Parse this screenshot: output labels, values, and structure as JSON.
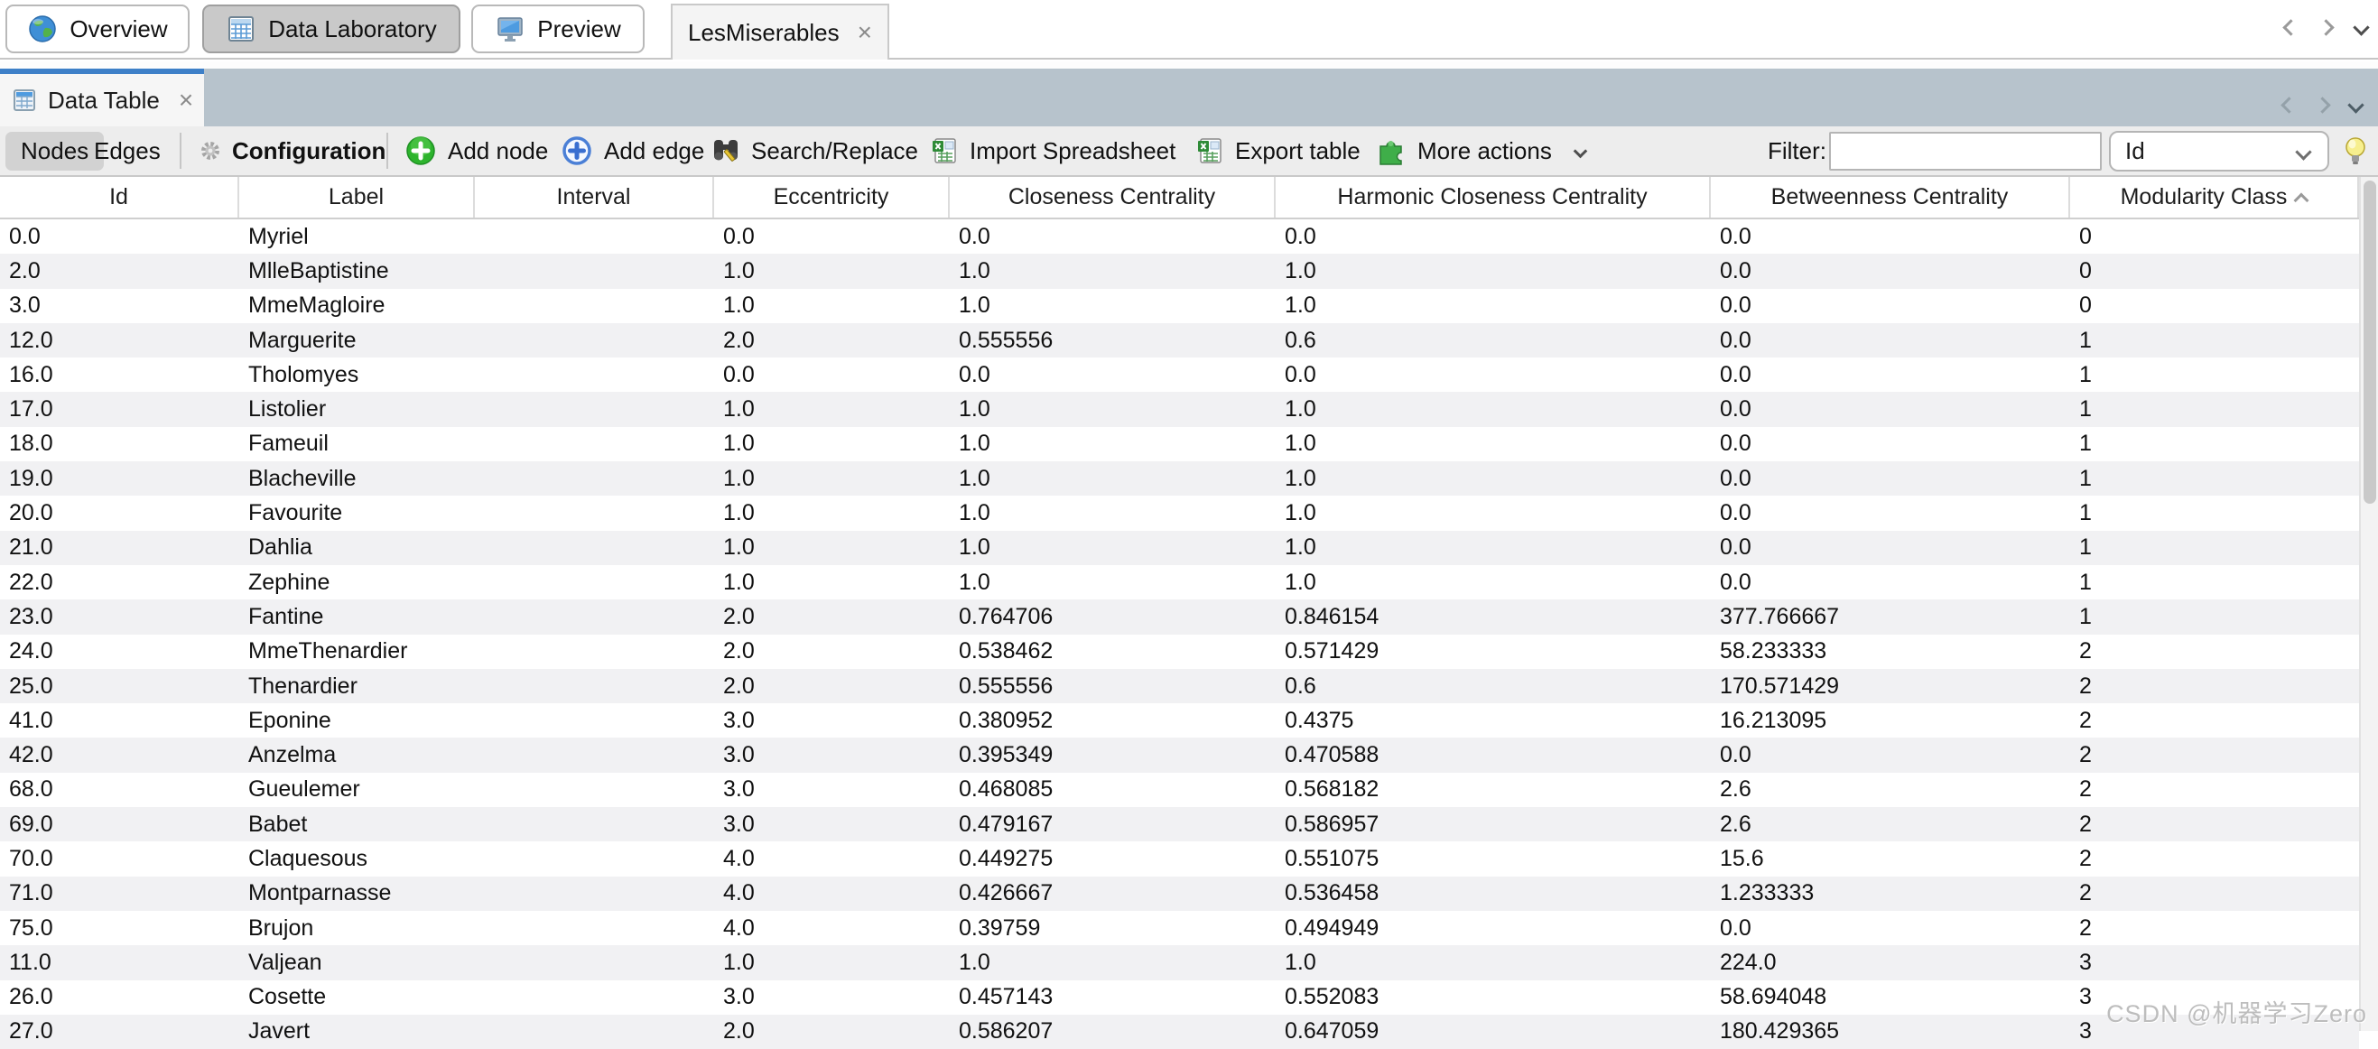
{
  "workspace_tabs": {
    "overview": "Overview",
    "data_laboratory": "Data Laboratory",
    "preview": "Preview"
  },
  "document_tab": {
    "label": "LesMiserables",
    "close": "×"
  },
  "panel_tab": {
    "label": "Data Table",
    "close": "×"
  },
  "toolbar": {
    "nodes": "Nodes",
    "edges": "Edges",
    "configuration": "Configuration",
    "add_node": "Add node",
    "add_edge": "Add edge",
    "search_replace": "Search/Replace",
    "import_spreadsheet": "Import Spreadsheet",
    "export_table": "Export table",
    "more_actions": "More actions",
    "filter_label": "Filter:",
    "filter_value": "",
    "filter_placeholder": "",
    "filter_column": "Id"
  },
  "table": {
    "columns": [
      "Id",
      "Label",
      "Interval",
      "Eccentricity",
      "Closeness Centrality",
      "Harmonic Closeness Centrality",
      "Betweenness Centrality",
      "Modularity Class"
    ],
    "sorted_column": "Modularity Class",
    "sort_direction": "ascending",
    "rows": [
      [
        "0.0",
        "Myriel",
        "",
        "0.0",
        "0.0",
        "0.0",
        "0.0",
        "0"
      ],
      [
        "2.0",
        "MlleBaptistine",
        "",
        "1.0",
        "1.0",
        "1.0",
        "0.0",
        "0"
      ],
      [
        "3.0",
        "MmeMagloire",
        "",
        "1.0",
        "1.0",
        "1.0",
        "0.0",
        "0"
      ],
      [
        "12.0",
        "Marguerite",
        "",
        "2.0",
        "0.555556",
        "0.6",
        "0.0",
        "1"
      ],
      [
        "16.0",
        "Tholomyes",
        "",
        "0.0",
        "0.0",
        "0.0",
        "0.0",
        "1"
      ],
      [
        "17.0",
        "Listolier",
        "",
        "1.0",
        "1.0",
        "1.0",
        "0.0",
        "1"
      ],
      [
        "18.0",
        "Fameuil",
        "",
        "1.0",
        "1.0",
        "1.0",
        "0.0",
        "1"
      ],
      [
        "19.0",
        "Blacheville",
        "",
        "1.0",
        "1.0",
        "1.0",
        "0.0",
        "1"
      ],
      [
        "20.0",
        "Favourite",
        "",
        "1.0",
        "1.0",
        "1.0",
        "0.0",
        "1"
      ],
      [
        "21.0",
        "Dahlia",
        "",
        "1.0",
        "1.0",
        "1.0",
        "0.0",
        "1"
      ],
      [
        "22.0",
        "Zephine",
        "",
        "1.0",
        "1.0",
        "1.0",
        "0.0",
        "1"
      ],
      [
        "23.0",
        "Fantine",
        "",
        "2.0",
        "0.764706",
        "0.846154",
        "377.766667",
        "1"
      ],
      [
        "24.0",
        "MmeThenardier",
        "",
        "2.0",
        "0.538462",
        "0.571429",
        "58.233333",
        "2"
      ],
      [
        "25.0",
        "Thenardier",
        "",
        "2.0",
        "0.555556",
        "0.6",
        "170.571429",
        "2"
      ],
      [
        "41.0",
        "Eponine",
        "",
        "3.0",
        "0.380952",
        "0.4375",
        "16.213095",
        "2"
      ],
      [
        "42.0",
        "Anzelma",
        "",
        "3.0",
        "0.395349",
        "0.470588",
        "0.0",
        "2"
      ],
      [
        "68.0",
        "Gueulemer",
        "",
        "3.0",
        "0.468085",
        "0.568182",
        "2.6",
        "2"
      ],
      [
        "69.0",
        "Babet",
        "",
        "3.0",
        "0.479167",
        "0.586957",
        "2.6",
        "2"
      ],
      [
        "70.0",
        "Claquesous",
        "",
        "4.0",
        "0.449275",
        "0.551075",
        "15.6",
        "2"
      ],
      [
        "71.0",
        "Montparnasse",
        "",
        "4.0",
        "0.426667",
        "0.536458",
        "1.233333",
        "2"
      ],
      [
        "75.0",
        "Brujon",
        "",
        "4.0",
        "0.39759",
        "0.494949",
        "0.0",
        "2"
      ],
      [
        "11.0",
        "Valjean",
        "",
        "1.0",
        "1.0",
        "1.0",
        "224.0",
        "3"
      ],
      [
        "26.0",
        "Cosette",
        "",
        "3.0",
        "0.457143",
        "0.552083",
        "58.694048",
        "3"
      ],
      [
        "27.0",
        "Javert",
        "",
        "2.0",
        "0.586207",
        "0.647059",
        "180.429365",
        "3"
      ]
    ]
  },
  "watermark": "CSDN @机器学习Zero",
  "colors": {
    "accent_blue": "#3e80c8",
    "strip_bluegrey": "#b7c3cc",
    "row_stripe": "#f1f1f3",
    "add_node_green": "#2db42d",
    "add_edge_blue": "#3a6fd0"
  }
}
